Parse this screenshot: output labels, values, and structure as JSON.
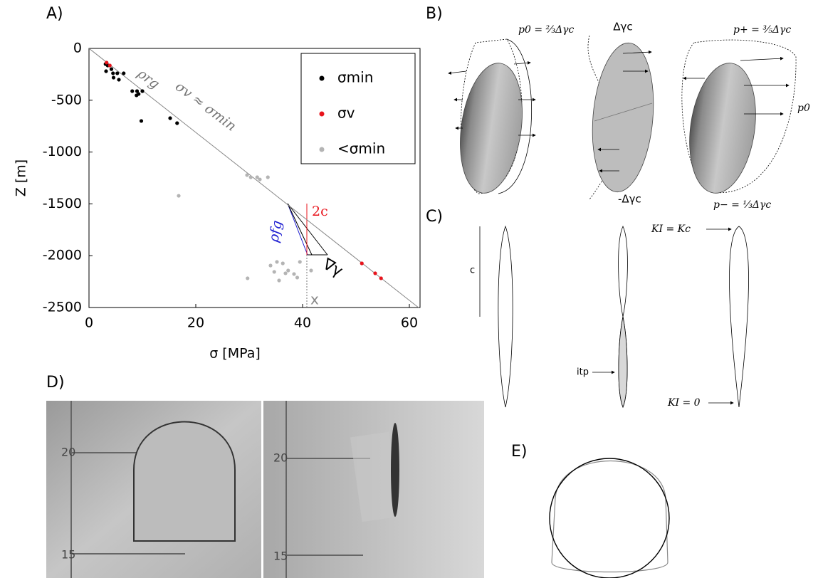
{
  "panel_labels": [
    "A)",
    "B)",
    "C)",
    "D)",
    "E)"
  ],
  "chart_data": {
    "type": "scatter",
    "x_label": "σ [MPa]",
    "y_label": "Z [m]",
    "xlim": [
      0,
      62
    ],
    "ylim": [
      -2500,
      0
    ],
    "xticks": [
      0,
      20,
      40,
      60
    ],
    "yticks": [
      -2500,
      -2000,
      -1500,
      -1000,
      -500,
      0
    ],
    "legend": "upper right",
    "series": [
      {
        "name": "σmin",
        "color": "#000000",
        "x": [
          3.1,
          3.5,
          3.2,
          4.2,
          4.5,
          5.3,
          4.6,
          5.6,
          6.5,
          8.1,
          9.0,
          9.3,
          10.0,
          8.9,
          9.8,
          15.2,
          16.5
        ],
        "y": [
          -151,
          -165,
          -220,
          -200,
          -240,
          -240,
          -282,
          -302,
          -240,
          -412,
          -412,
          -440,
          -412,
          -453,
          -700,
          -673,
          -721
        ]
      },
      {
        "name": "σv",
        "color": "#e8141c",
        "x": [
          3.3,
          3.9,
          51.1,
          53.6,
          54.7
        ],
        "y": [
          -137,
          -165,
          -2074,
          -2170,
          -2218
        ]
      },
      {
        "name": "<σmin",
        "color": "#b4b4b4",
        "x": [
          29.6,
          30.3,
          31.5,
          32.0,
          33.5,
          16.8,
          34.0,
          35.2,
          36.3,
          34.7,
          35.6,
          37.3,
          38.4,
          36.8,
          39.5,
          41.6,
          39.0,
          29.7
        ],
        "y": [
          -1222,
          -1243,
          -1243,
          -1264,
          -1243,
          -1422,
          -2095,
          -2060,
          -2074,
          -2156,
          -2239,
          -2143,
          -2177,
          -2170,
          -2060,
          -2143,
          -2211,
          -2218
        ]
      }
    ],
    "trend": {
      "x": [
        0,
        61.7
      ],
      "y": [
        0,
        -2500
      ]
    },
    "annotations": [
      "ρrg",
      "σv ≈ σmin",
      "ρfg",
      "2c",
      "∇γ",
      "x"
    ]
  },
  "panel_b": {
    "labels": [
      "p0 = ⅔Δγc",
      "Δγc",
      "p+ = ⅗Δγc",
      "p0",
      "-Δγc",
      "p− = ⅓Δγc"
    ]
  },
  "panel_c": {
    "labels": [
      "c",
      "itp",
      "KI = Kc",
      "KI = 0"
    ]
  },
  "panel_d": {
    "labels": [
      "20",
      "15",
      "20",
      "15"
    ]
  }
}
